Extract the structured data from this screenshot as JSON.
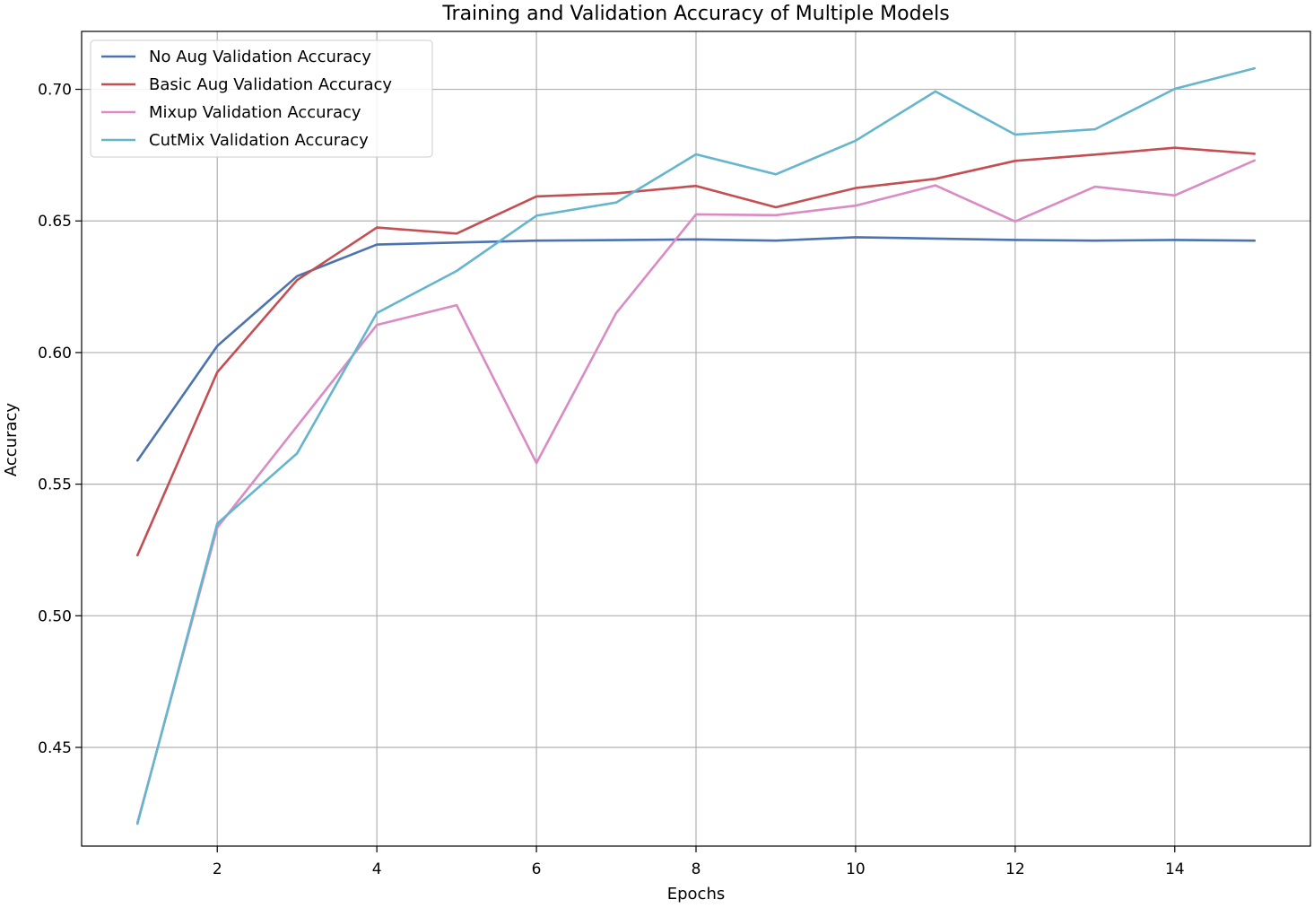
{
  "chart_data": {
    "type": "line",
    "title": "Training and Validation Accuracy of Multiple Models",
    "xlabel": "Epochs",
    "ylabel": "Accuracy",
    "xlim": [
      0.3,
      15.7
    ],
    "ylim": [
      0.4125,
      0.722
    ],
    "xticks": [
      2,
      4,
      6,
      8,
      10,
      12,
      14
    ],
    "yticks": [
      0.45,
      0.5,
      0.55,
      0.6,
      0.65,
      0.7
    ],
    "grid": true,
    "legend_position": "top-left",
    "x": [
      1,
      2,
      3,
      4,
      5,
      6,
      7,
      8,
      9,
      10,
      11,
      12,
      13,
      14,
      15
    ],
    "series": [
      {
        "name": "No Aug Validation Accuracy",
        "color": "#4c72b0",
        "values": [
          0.559,
          0.6025,
          0.629,
          0.641,
          0.6418,
          0.6425,
          0.6427,
          0.643,
          0.6425,
          0.6438,
          0.6433,
          0.6428,
          0.6425,
          0.6428,
          0.6425
        ]
      },
      {
        "name": "Basic Aug Validation Accuracy",
        "color": "#c44e52",
        "values": [
          0.523,
          0.5925,
          0.6275,
          0.6475,
          0.6452,
          0.6593,
          0.6605,
          0.6633,
          0.6552,
          0.6625,
          0.666,
          0.6728,
          0.6752,
          0.6778,
          0.6755
        ]
      },
      {
        "name": "Mixup Validation Accuracy",
        "color": "#da8bc3",
        "values": [
          0.4215,
          0.5335,
          0.572,
          0.6105,
          0.618,
          0.558,
          0.615,
          0.6525,
          0.6522,
          0.6558,
          0.6635,
          0.6498,
          0.663,
          0.6597,
          0.673
        ]
      },
      {
        "name": "CutMix Validation Accuracy",
        "color": "#64b5cd",
        "values": [
          0.421,
          0.535,
          0.5617,
          0.615,
          0.631,
          0.652,
          0.657,
          0.6753,
          0.6677,
          0.6805,
          0.6992,
          0.6828,
          0.6848,
          0.7002,
          0.708
        ]
      }
    ]
  }
}
